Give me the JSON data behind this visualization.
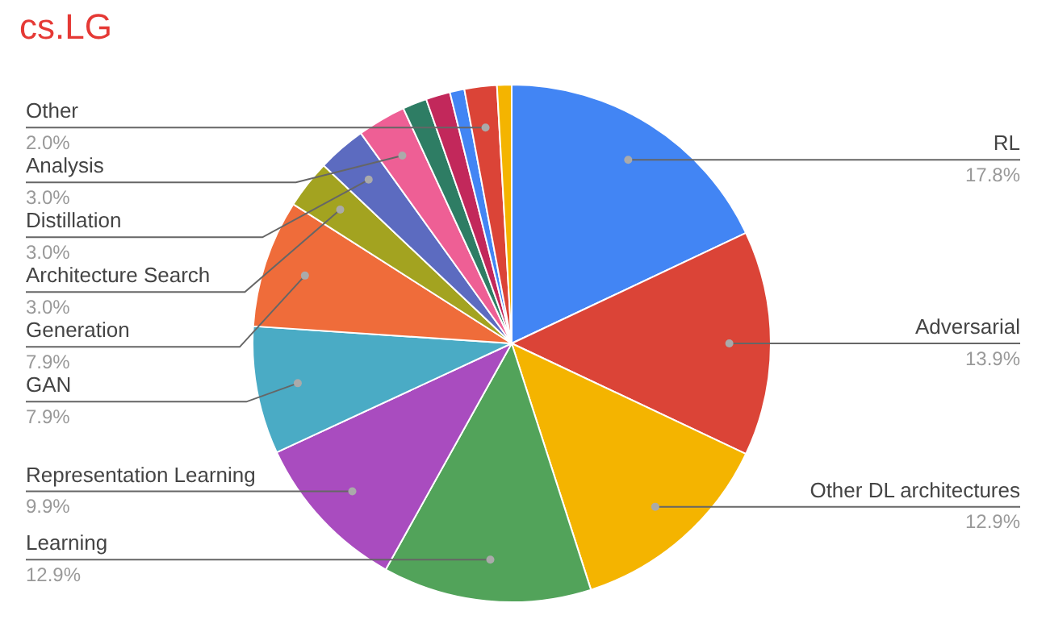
{
  "chart_data": {
    "type": "pie",
    "title": "cs.LG",
    "categories": [
      "RL",
      "Adversarial",
      "Other DL architectures",
      "Learning",
      "Representation Learning",
      "GAN",
      "Generation",
      "Architecture Search",
      "Distillation",
      "Analysis",
      null,
      null,
      null,
      "Other",
      null
    ],
    "values": [
      17.8,
      13.9,
      12.9,
      12.9,
      9.9,
      7.9,
      7.9,
      3.0,
      3.0,
      3.0,
      1.5,
      1.5,
      0.9,
      2.0,
      0.9
    ],
    "value_labels": [
      "17.8%",
      "13.9%",
      "12.9%",
      "12.9%",
      "9.9%",
      "7.9%",
      "7.9%",
      "3.0%",
      "3.0%",
      "3.0%",
      null,
      null,
      null,
      "2.0%",
      null
    ],
    "colors": [
      "#4285f4",
      "#db4437",
      "#f4b400",
      "#52a35a",
      "#a94cbf",
      "#4aabc5",
      "#ef6c3a",
      "#a3a320",
      "#5c6bc0",
      "#ee5f95",
      "#2e7d64",
      "#c2285b",
      "#4285f4",
      "#db4437",
      "#f4b400"
    ]
  }
}
